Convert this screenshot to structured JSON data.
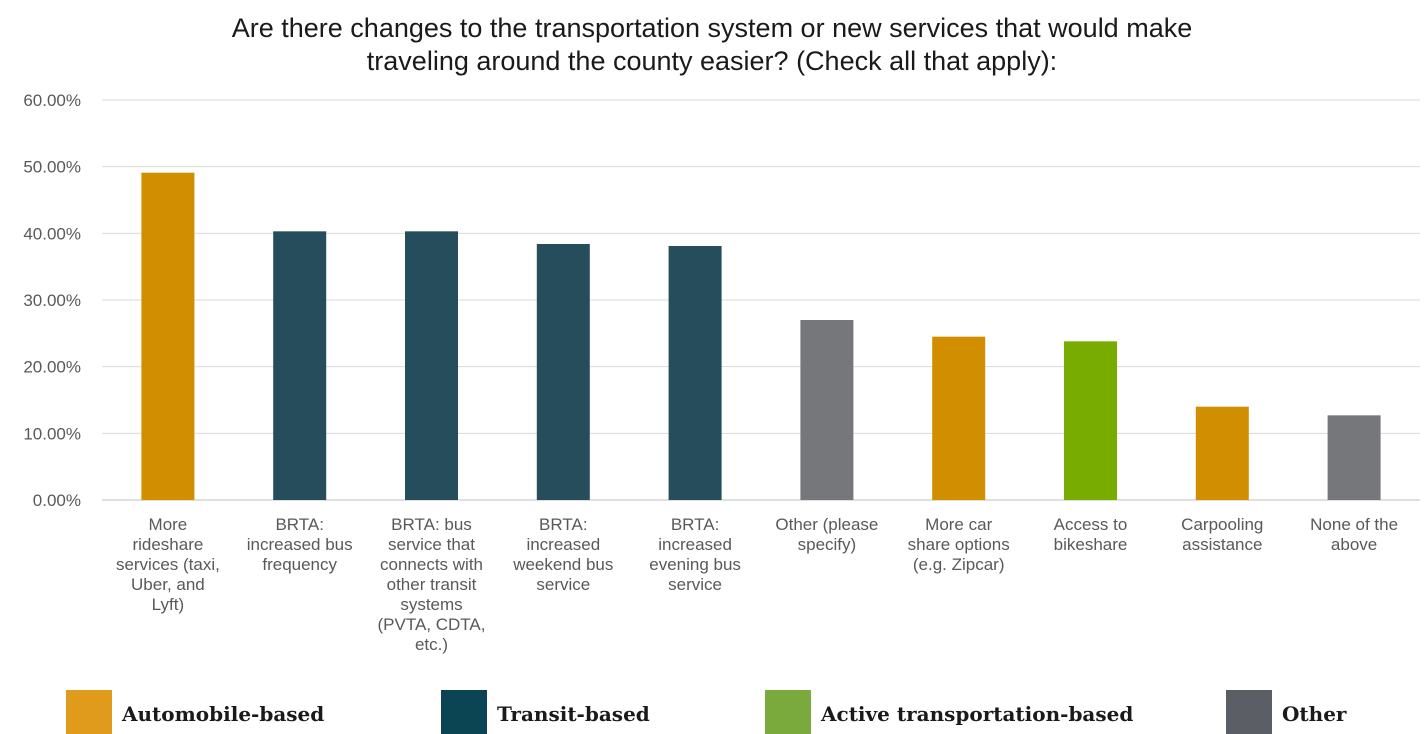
{
  "chart_data": {
    "type": "bar",
    "title": [
      "Are there changes to the transportation system or new services that would make",
      "traveling around the county easier? (Check all that apply):"
    ],
    "xlabel": "",
    "ylabel": "",
    "ylim": [
      0,
      60
    ],
    "yticks": [
      "0.00%",
      "10.00%",
      "20.00%",
      "30.00%",
      "40.00%",
      "50.00%",
      "60.00%"
    ],
    "grid": true,
    "categories": [
      [
        "More",
        "rideshare",
        "services (taxi,",
        "Uber, and",
        "Lyft)"
      ],
      [
        "BRTA:",
        "increased bus",
        "frequency"
      ],
      [
        "BRTA: bus",
        "service that",
        "connects with",
        "other transit",
        "systems",
        "(PVTA, CDTA,",
        "etc.)"
      ],
      [
        "BRTA:",
        "increased",
        "weekend bus",
        "service"
      ],
      [
        "BRTA:",
        "increased",
        "evening bus",
        "service"
      ],
      [
        "Other (please",
        "specify)"
      ],
      [
        "More car",
        "share options",
        "(e.g. Zipcar)"
      ],
      [
        "Access to",
        "bikeshare"
      ],
      [
        "Carpooling",
        "assistance"
      ],
      [
        "None of the",
        "above"
      ]
    ],
    "values": [
      49.1,
      40.3,
      40.3,
      38.4,
      38.1,
      27.0,
      24.5,
      23.8,
      14.0,
      12.7
    ],
    "bar_groups": [
      "Automobile-based",
      "Transit-based",
      "Transit-based",
      "Transit-based",
      "Transit-based",
      "Other",
      "Automobile-based",
      "Active transportation-based",
      "Automobile-based",
      "Other"
    ],
    "legend": [
      {
        "label": "Automobile-based",
        "color": "#e09b1c"
      },
      {
        "label": "Transit-based",
        "color": "#0b4452"
      },
      {
        "label": "Active transportation-based",
        "color": "#7aaa3c"
      },
      {
        "label": "Other",
        "color": "#5c5e66"
      }
    ],
    "bar_colors": {
      "Automobile-based": "#d18f00",
      "Transit-based": "#264d5c",
      "Active transportation-based": "#79ac00",
      "Other": "#75777a"
    },
    "legend_placement": "bottom"
  }
}
